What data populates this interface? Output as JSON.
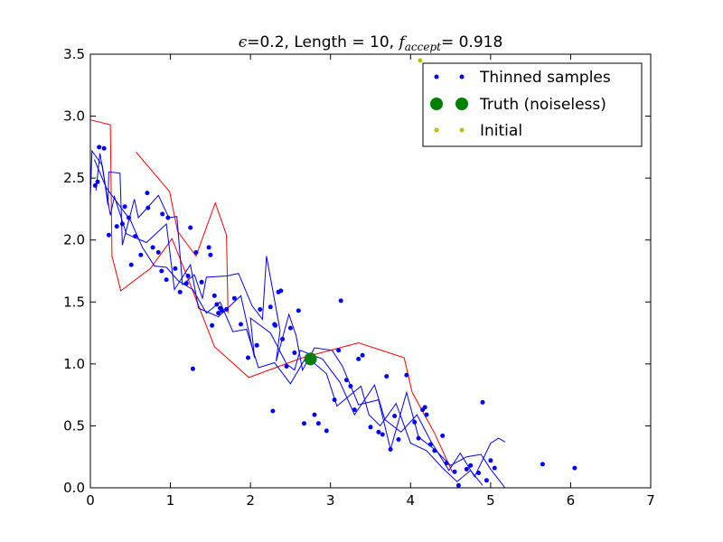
{
  "chart_data": {
    "type": "scatter",
    "title": {
      "epsilon_symbol": "ϵ",
      "part1": "=0.2, Length = 10, ",
      "f_symbol": "f",
      "f_subscript": "accept",
      "part2": "= 0.918"
    },
    "xlim": [
      0,
      7
    ],
    "ylim": [
      0,
      3.5
    ],
    "xticks": [
      "0",
      "1",
      "2",
      "3",
      "4",
      "5",
      "6",
      "7"
    ],
    "yticks": [
      "0.0",
      "0.5",
      "1.0",
      "1.5",
      "2.0",
      "2.5",
      "3.0",
      "3.5"
    ],
    "grid": false,
    "legend_position": "top-right",
    "legend": [
      {
        "label": "Thinned samples",
        "color": "#0000ff",
        "marker": "small-dot"
      },
      {
        "label": "Truth (noiseless)",
        "color": "#008000",
        "marker": "large-dot"
      },
      {
        "label": "Initial",
        "color": "#bfbf00",
        "marker": "small-dot"
      }
    ],
    "series": [
      {
        "name": "Thinned samples",
        "color": "#0000ff",
        "points": [
          [
            0.06,
            2.44
          ],
          [
            0.11,
            2.75
          ],
          [
            0.09,
            2.47
          ],
          [
            0.17,
            2.74
          ],
          [
            0.23,
            2.04
          ],
          [
            0.33,
            2.11
          ],
          [
            0.4,
            2.13
          ],
          [
            0.43,
            2.27
          ],
          [
            0.48,
            2.18
          ],
          [
            0.51,
            1.8
          ],
          [
            0.56,
            2.03
          ],
          [
            0.63,
            1.88
          ],
          [
            0.71,
            2.38
          ],
          [
            0.72,
            2.26
          ],
          [
            0.78,
            1.94
          ],
          [
            0.85,
            1.9
          ],
          [
            0.89,
            1.75
          ],
          [
            0.9,
            2.21
          ],
          [
            0.95,
            1.68
          ],
          [
            0.97,
            2.18
          ],
          [
            1.06,
            1.77
          ],
          [
            1.12,
            1.58
          ],
          [
            1.2,
            1.65
          ],
          [
            1.22,
            1.71
          ],
          [
            1.25,
            2.1
          ],
          [
            1.32,
            1.9
          ],
          [
            1.39,
            1.66
          ],
          [
            1.48,
            1.94
          ],
          [
            1.5,
            1.88
          ],
          [
            1.52,
            1.31
          ],
          [
            1.55,
            1.55
          ],
          [
            1.58,
            1.48
          ],
          [
            1.6,
            1.41
          ],
          [
            1.62,
            1.45
          ],
          [
            1.64,
            1.43
          ],
          [
            1.7,
            1.44
          ],
          [
            1.8,
            1.53
          ],
          [
            1.88,
            1.32
          ],
          [
            1.97,
            1.05
          ],
          [
            2.08,
            1.15
          ],
          [
            2.12,
            1.44
          ],
          [
            2.25,
            1.46
          ],
          [
            2.28,
            0.62
          ],
          [
            2.31,
            1.31
          ],
          [
            2.35,
            1.58
          ],
          [
            2.38,
            1.59
          ],
          [
            2.4,
            1.2
          ],
          [
            2.45,
            0.98
          ],
          [
            2.5,
            1.29
          ],
          [
            2.55,
            1.09
          ],
          [
            2.6,
            1.43
          ],
          [
            2.67,
            0.52
          ],
          [
            2.8,
            0.59
          ],
          [
            2.85,
            0.52
          ],
          [
            2.95,
            0.46
          ],
          [
            3.05,
            0.71
          ],
          [
            3.1,
            1.11
          ],
          [
            3.13,
            1.51
          ],
          [
            3.2,
            0.87
          ],
          [
            3.25,
            0.82
          ],
          [
            3.3,
            0.63
          ],
          [
            3.35,
            1.04
          ],
          [
            3.4,
            1.07
          ],
          [
            3.5,
            0.49
          ],
          [
            3.6,
            0.45
          ],
          [
            3.65,
            0.43
          ],
          [
            3.7,
            0.9
          ],
          [
            3.75,
            0.31
          ],
          [
            3.8,
            0.58
          ],
          [
            3.85,
            0.39
          ],
          [
            3.95,
            0.91
          ],
          [
            4.05,
            0.53
          ],
          [
            4.1,
            0.4
          ],
          [
            4.15,
            0.63
          ],
          [
            4.18,
            0.65
          ],
          [
            4.2,
            0.59
          ],
          [
            4.25,
            0.35
          ],
          [
            4.3,
            0.3
          ],
          [
            4.4,
            0.42
          ],
          [
            4.45,
            0.2
          ],
          [
            4.55,
            0.13
          ],
          [
            4.6,
            0.02
          ],
          [
            4.7,
            0.15
          ],
          [
            4.75,
            0.18
          ],
          [
            4.85,
            0.12
          ],
          [
            4.9,
            0.69
          ],
          [
            4.95,
            0.06
          ],
          [
            5.0,
            0.22
          ],
          [
            5.05,
            0.16
          ],
          [
            5.65,
            0.19
          ],
          [
            6.05,
            0.16
          ],
          [
            1.28,
            0.96
          ],
          [
            2.3,
            1.32
          ]
        ]
      },
      {
        "name": "Truth (noiseless)",
        "color": "#008000",
        "points": [
          [
            2.75,
            1.04
          ]
        ]
      },
      {
        "name": "Initial",
        "color": "#bfbf00",
        "points": [
          [
            4.12,
            3.45
          ]
        ]
      },
      {
        "name": "Truth",
        "color": "#ff0000",
        "type": "line",
        "points": [
          [
            0.0,
            2.97
          ],
          [
            0.25,
            2.93
          ],
          [
            0.27,
            1.87
          ],
          [
            0.38,
            1.59
          ],
          [
            0.75,
            1.77
          ],
          [
            1.02,
            2.01
          ],
          [
            1.2,
            1.72
          ],
          [
            1.55,
            1.14
          ],
          [
            1.98,
            0.89
          ],
          [
            2.65,
            1.05
          ],
          [
            3.35,
            1.17
          ],
          [
            3.92,
            1.05
          ],
          [
            4.02,
            0.77
          ],
          [
            4.3,
            0.44
          ],
          [
            4.52,
            0.13
          ]
        ]
      },
      {
        "name": "Red trace 2",
        "color": "#ff0000",
        "type": "line",
        "points": [
          [
            0.57,
            2.71
          ],
          [
            0.99,
            2.39
          ],
          [
            1.09,
            2.07
          ],
          [
            1.32,
            1.87
          ],
          [
            1.56,
            2.3
          ],
          [
            1.7,
            2.04
          ],
          [
            1.72,
            1.41
          ]
        ]
      },
      {
        "name": "Blue traces",
        "color": "#0000ff",
        "type": "line",
        "paths": [
          [
            [
              0.0,
              2.35
            ],
            [
              0.02,
              2.72
            ],
            [
              0.15,
              2.6
            ],
            [
              0.22,
              2.28
            ],
            [
              0.23,
              2.55
            ],
            [
              0.37,
              2.54
            ],
            [
              0.4,
              1.96
            ],
            [
              0.55,
              2.33
            ],
            [
              0.6,
              2.18
            ],
            [
              0.85,
              2.36
            ],
            [
              0.98,
              2.18
            ],
            [
              1.08,
              2.19
            ],
            [
              1.15,
              1.64
            ],
            [
              1.3,
              1.72
            ],
            [
              1.4,
              1.53
            ],
            [
              1.45,
              1.7
            ],
            [
              1.7,
              1.71
            ],
            [
              1.85,
              1.73
            ],
            [
              2.02,
              1.47
            ],
            [
              2.15,
              1.36
            ],
            [
              2.2,
              1.87
            ],
            [
              2.37,
              1.27
            ],
            [
              2.32,
              1.02
            ],
            [
              2.48,
              1.4
            ],
            [
              2.57,
              1.23
            ],
            [
              2.65,
              0.95
            ],
            [
              2.8,
              1.13
            ],
            [
              3.02,
              1.11
            ],
            [
              3.15,
              0.98
            ],
            [
              3.35,
              0.67
            ],
            [
              3.6,
              0.71
            ],
            [
              3.75,
              0.31
            ],
            [
              3.95,
              0.77
            ],
            [
              4.1,
              0.41
            ],
            [
              4.3,
              0.31
            ],
            [
              4.5,
              0.18
            ],
            [
              4.7,
              0.25
            ],
            [
              4.88,
              0.27
            ],
            [
              5.0,
              0.15
            ],
            [
              5.18,
              0.0
            ]
          ],
          [
            [
              0.07,
              2.4
            ],
            [
              0.12,
              2.7
            ],
            [
              0.25,
              2.2
            ],
            [
              0.3,
              2.35
            ],
            [
              0.45,
              2.05
            ],
            [
              0.7,
              1.98
            ],
            [
              0.95,
              2.13
            ],
            [
              1.05,
              1.6
            ],
            [
              1.25,
              1.8
            ],
            [
              1.35,
              1.45
            ],
            [
              1.6,
              1.38
            ],
            [
              1.88,
              1.55
            ],
            [
              2.05,
              1.05
            ],
            [
              2.0,
              1.37
            ],
            [
              2.25,
              1.25
            ],
            [
              2.45,
              1.0
            ],
            [
              2.55,
              0.95
            ],
            [
              2.62,
              1.11
            ],
            [
              2.9,
              1.04
            ],
            [
              3.12,
              0.85
            ],
            [
              3.3,
              0.59
            ],
            [
              3.55,
              0.83
            ],
            [
              3.68,
              0.55
            ],
            [
              3.88,
              0.45
            ],
            [
              4.08,
              0.59
            ],
            [
              4.25,
              0.38
            ],
            [
              4.48,
              0.14
            ],
            [
              4.62,
              0.28
            ],
            [
              4.8,
              0.09
            ],
            [
              5.0,
              0.36
            ],
            [
              5.1,
              0.4
            ],
            [
              5.18,
              0.37
            ]
          ],
          [
            [
              0.05,
              2.65
            ],
            [
              0.2,
              2.42
            ],
            [
              0.35,
              2.29
            ],
            [
              0.5,
              2.16
            ],
            [
              0.65,
              1.94
            ],
            [
              0.8,
              1.79
            ],
            [
              0.95,
              1.78
            ],
            [
              1.1,
              1.67
            ],
            [
              1.28,
              1.6
            ],
            [
              1.45,
              1.41
            ],
            [
              1.62,
              1.5
            ],
            [
              1.78,
              1.26
            ],
            [
              1.95,
              1.28
            ],
            [
              2.1,
              0.97
            ],
            [
              2.3,
              1.01
            ],
            [
              2.5,
              0.84
            ],
            [
              2.7,
              1.06
            ],
            [
              2.95,
              0.92
            ],
            [
              3.08,
              0.66
            ],
            [
              3.38,
              0.82
            ],
            [
              3.48,
              0.59
            ],
            [
              3.62,
              0.5
            ],
            [
              3.82,
              0.68
            ],
            [
              4.0,
              0.36
            ],
            [
              4.2,
              0.3
            ],
            [
              4.4,
              0.16
            ],
            [
              4.58,
              0.05
            ],
            [
              4.75,
              0.14
            ],
            [
              4.9,
              0.02
            ]
          ]
        ]
      }
    ]
  }
}
